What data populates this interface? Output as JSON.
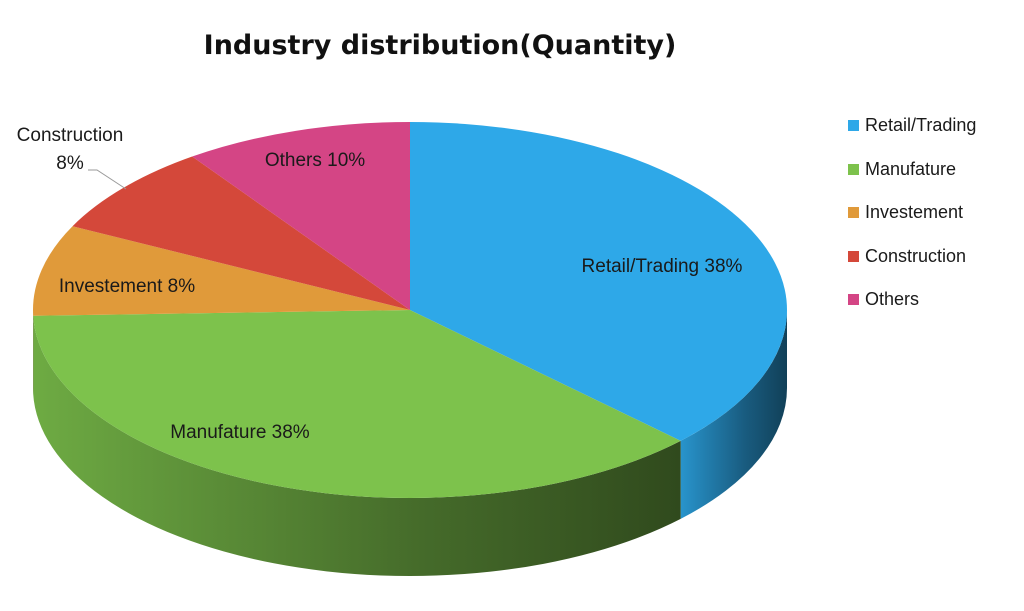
{
  "chart_data": {
    "type": "pie",
    "title": "Industry distribution(Quantity)",
    "categories": [
      "Retail/Trading",
      "Manufature",
      "Investement",
      "Construction",
      "Others"
    ],
    "values": [
      38,
      38,
      8,
      8,
      10
    ],
    "unit": "%",
    "colors": [
      "#2EA8E8",
      "#7DC24C",
      "#E09A3A",
      "#D4483A",
      "#D44585"
    ],
    "data_labels": [
      "Retail/Trading 38%",
      "Manufature 38%",
      "Investement 8%",
      "Construction 8%",
      "Others 10%"
    ],
    "legend_position": "right",
    "style": "3d",
    "grid": false
  },
  "legend": {
    "items": [
      {
        "label": "Retail/Trading",
        "color": "#2EA8E8"
      },
      {
        "label": "Manufature",
        "color": "#7DC24C"
      },
      {
        "label": "Investement",
        "color": "#E09A3A"
      },
      {
        "label": "Construction",
        "color": "#D4483A"
      },
      {
        "label": "Others",
        "color": "#D44585"
      }
    ]
  }
}
